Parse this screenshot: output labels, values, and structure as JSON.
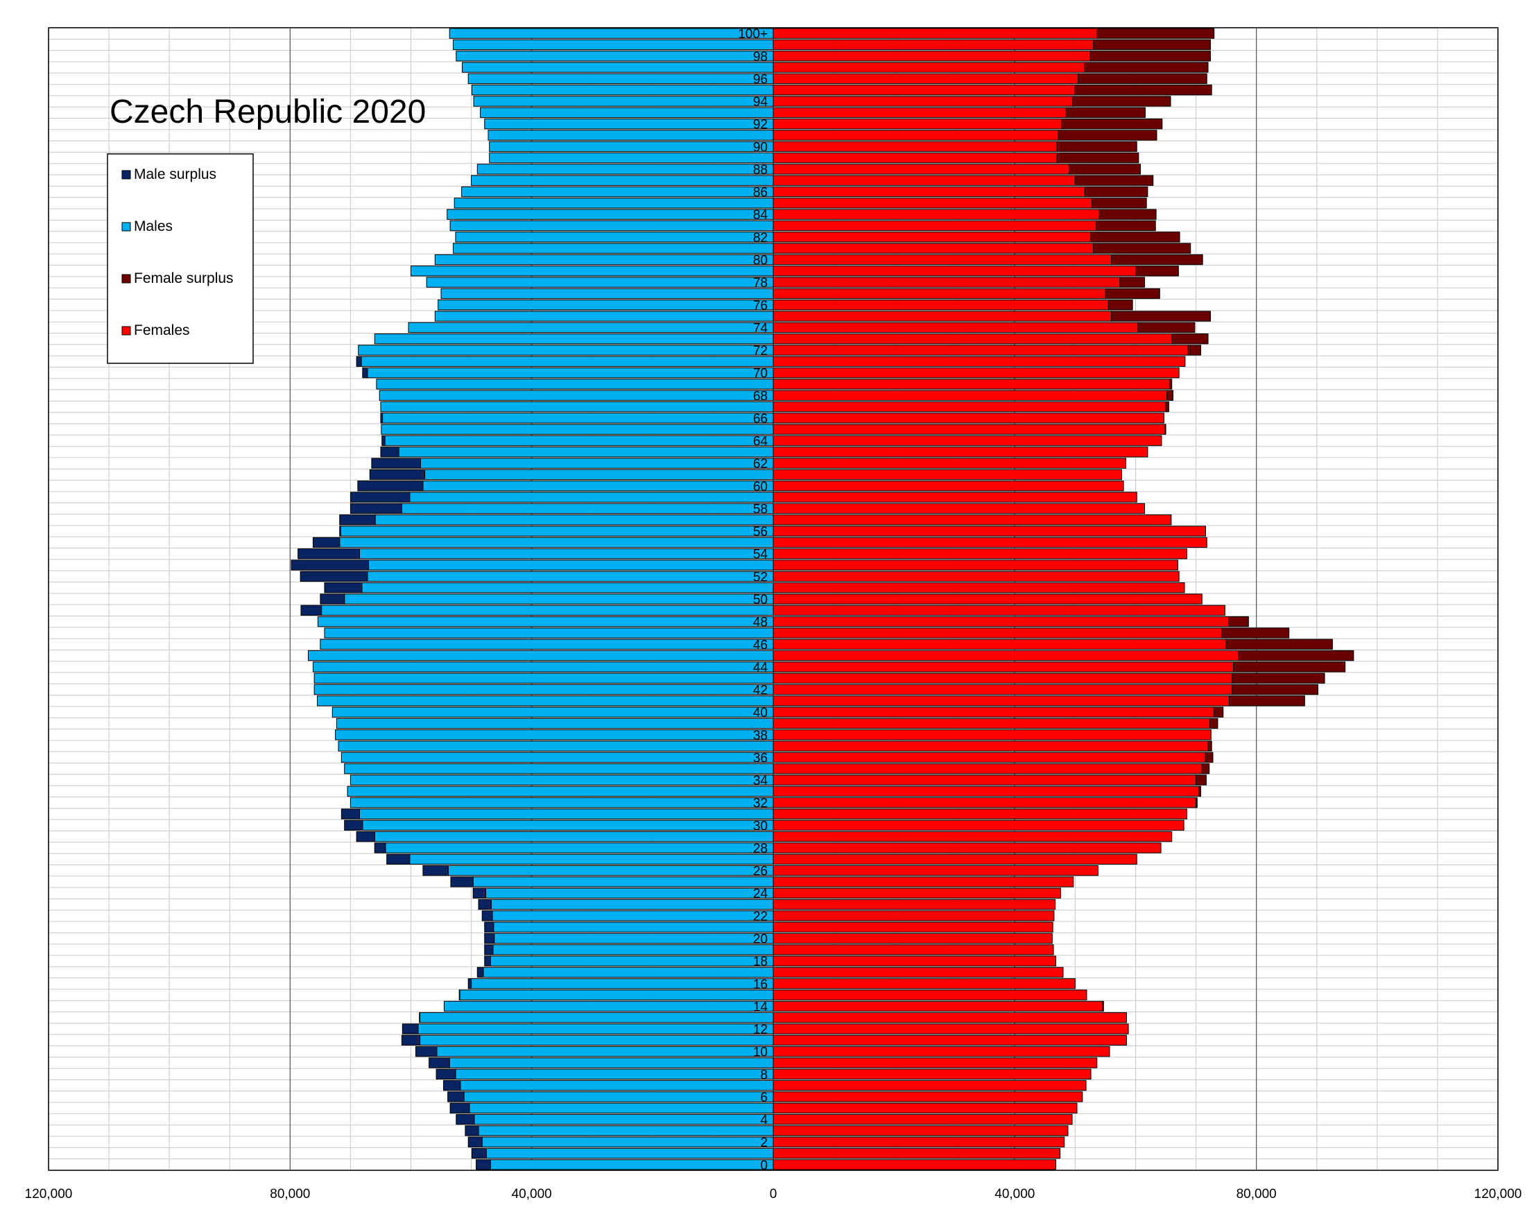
{
  "chart_data": {
    "type": "bar",
    "orientation": "horizontal-pyramid",
    "title": "Czech Republic 2020",
    "x_range": [
      -120000,
      120000
    ],
    "x_ticks": [
      -120000,
      -80000,
      -40000,
      0,
      40000,
      80000,
      120000
    ],
    "x_tick_labels": [
      "120,000",
      "80,000",
      "40,000",
      "0",
      "40,000",
      "80,000",
      "120,000"
    ],
    "legend": {
      "placement": "top-left",
      "items": [
        {
          "label": "Male surplus",
          "color": "#0a2461"
        },
        {
          "label": "Males",
          "color": "#00b0f0"
        },
        {
          "label": "Female surplus",
          "color": "#6b0000"
        },
        {
          "label": "Females",
          "color": "#ff0000"
        }
      ]
    },
    "age_labels": [
      "0",
      "2",
      "4",
      "6",
      "8",
      "10",
      "12",
      "14",
      "16",
      "18",
      "20",
      "22",
      "24",
      "26",
      "28",
      "30",
      "32",
      "34",
      "36",
      "38",
      "40",
      "42",
      "44",
      "46",
      "48",
      "50",
      "52",
      "54",
      "56",
      "58",
      "60",
      "62",
      "64",
      "66",
      "68",
      "70",
      "72",
      "74",
      "76",
      "78",
      "80",
      "82",
      "84",
      "86",
      "88",
      "90",
      "92",
      "94",
      "96",
      "98",
      "100+"
    ],
    "ages": [
      "0",
      "1",
      "2",
      "3",
      "4",
      "5",
      "6",
      "7",
      "8",
      "9",
      "10",
      "11",
      "12",
      "13",
      "14",
      "15",
      "16",
      "17",
      "18",
      "19",
      "20",
      "21",
      "22",
      "23",
      "24",
      "25",
      "26",
      "27",
      "28",
      "29",
      "30",
      "31",
      "32",
      "33",
      "34",
      "35",
      "36",
      "37",
      "38",
      "39",
      "40",
      "41",
      "42",
      "43",
      "44",
      "45",
      "46",
      "47",
      "48",
      "49",
      "50",
      "51",
      "52",
      "53",
      "54",
      "55",
      "56",
      "57",
      "58",
      "59",
      "60",
      "61",
      "62",
      "63",
      "64",
      "65",
      "66",
      "67",
      "68",
      "69",
      "70",
      "71",
      "72",
      "73",
      "74",
      "75",
      "76",
      "77",
      "78",
      "79",
      "80",
      "81",
      "82",
      "83",
      "84",
      "85",
      "86",
      "87",
      "88",
      "89",
      "90",
      "91",
      "92",
      "93",
      "94",
      "95",
      "96",
      "97",
      "98",
      "99",
      "100+"
    ],
    "series": [
      {
        "name": "Males",
        "values": [
          49200,
          49900,
          50500,
          51000,
          52500,
          53500,
          53900,
          54600,
          55800,
          57000,
          59200,
          61500,
          61400,
          58600,
          54500,
          52000,
          50500,
          49000,
          47800,
          47800,
          47800,
          47800,
          48200,
          48800,
          49700,
          53400,
          58000,
          64000,
          66000,
          69000,
          71000,
          71500,
          70000,
          70500,
          70000,
          71000,
          71500,
          72000,
          72500,
          72300,
          73000,
          75500,
          76000,
          76000,
          76200,
          77000,
          75000,
          74300,
          75400,
          78200,
          75000,
          74300,
          78300,
          79800,
          78700,
          76200,
          71800,
          71800,
          70000,
          70000,
          68800,
          66800,
          66500,
          65000,
          64800,
          64900,
          65000,
          65000,
          65200,
          65700,
          68000,
          69000,
          68700,
          66000,
          60400,
          56000,
          55500,
          55000,
          57400,
          60000,
          56000,
          53000,
          52600,
          53500,
          54000,
          52800,
          51600,
          50000,
          49000,
          47000,
          47000,
          47200,
          47800,
          48500,
          49600,
          49900,
          50500,
          51500,
          52500,
          53000,
          53600
        ],
        "display": "left"
      },
      {
        "name": "Females",
        "values": [
          46800,
          47500,
          48200,
          48800,
          49500,
          50300,
          51200,
          51800,
          52600,
          53600,
          55700,
          58500,
          58800,
          58500,
          54700,
          51900,
          50000,
          48000,
          46800,
          46400,
          46200,
          46300,
          46500,
          46700,
          47600,
          49700,
          53800,
          60200,
          64200,
          66000,
          68000,
          68500,
          70200,
          70800,
          71700,
          72200,
          72800,
          72600,
          72500,
          73600,
          74500,
          88000,
          90200,
          91300,
          94700,
          96100,
          92600,
          85400,
          78700,
          74800,
          71000,
          68100,
          67200,
          67000,
          68500,
          71800,
          71600,
          65900,
          61500,
          60200,
          58000,
          57700,
          58400,
          62000,
          64300,
          65000,
          64700,
          65500,
          66200,
          66000,
          67200,
          68200,
          70800,
          72000,
          69800,
          72400,
          59500,
          64000,
          61500,
          67100,
          71100,
          69100,
          67300,
          63300,
          63400,
          61800,
          62000,
          62900,
          60800,
          60500,
          60200,
          63500,
          64400,
          61600,
          65800,
          72600,
          71800,
          72000,
          72400,
          72400,
          73000
        ],
        "display": "right"
      }
    ]
  }
}
